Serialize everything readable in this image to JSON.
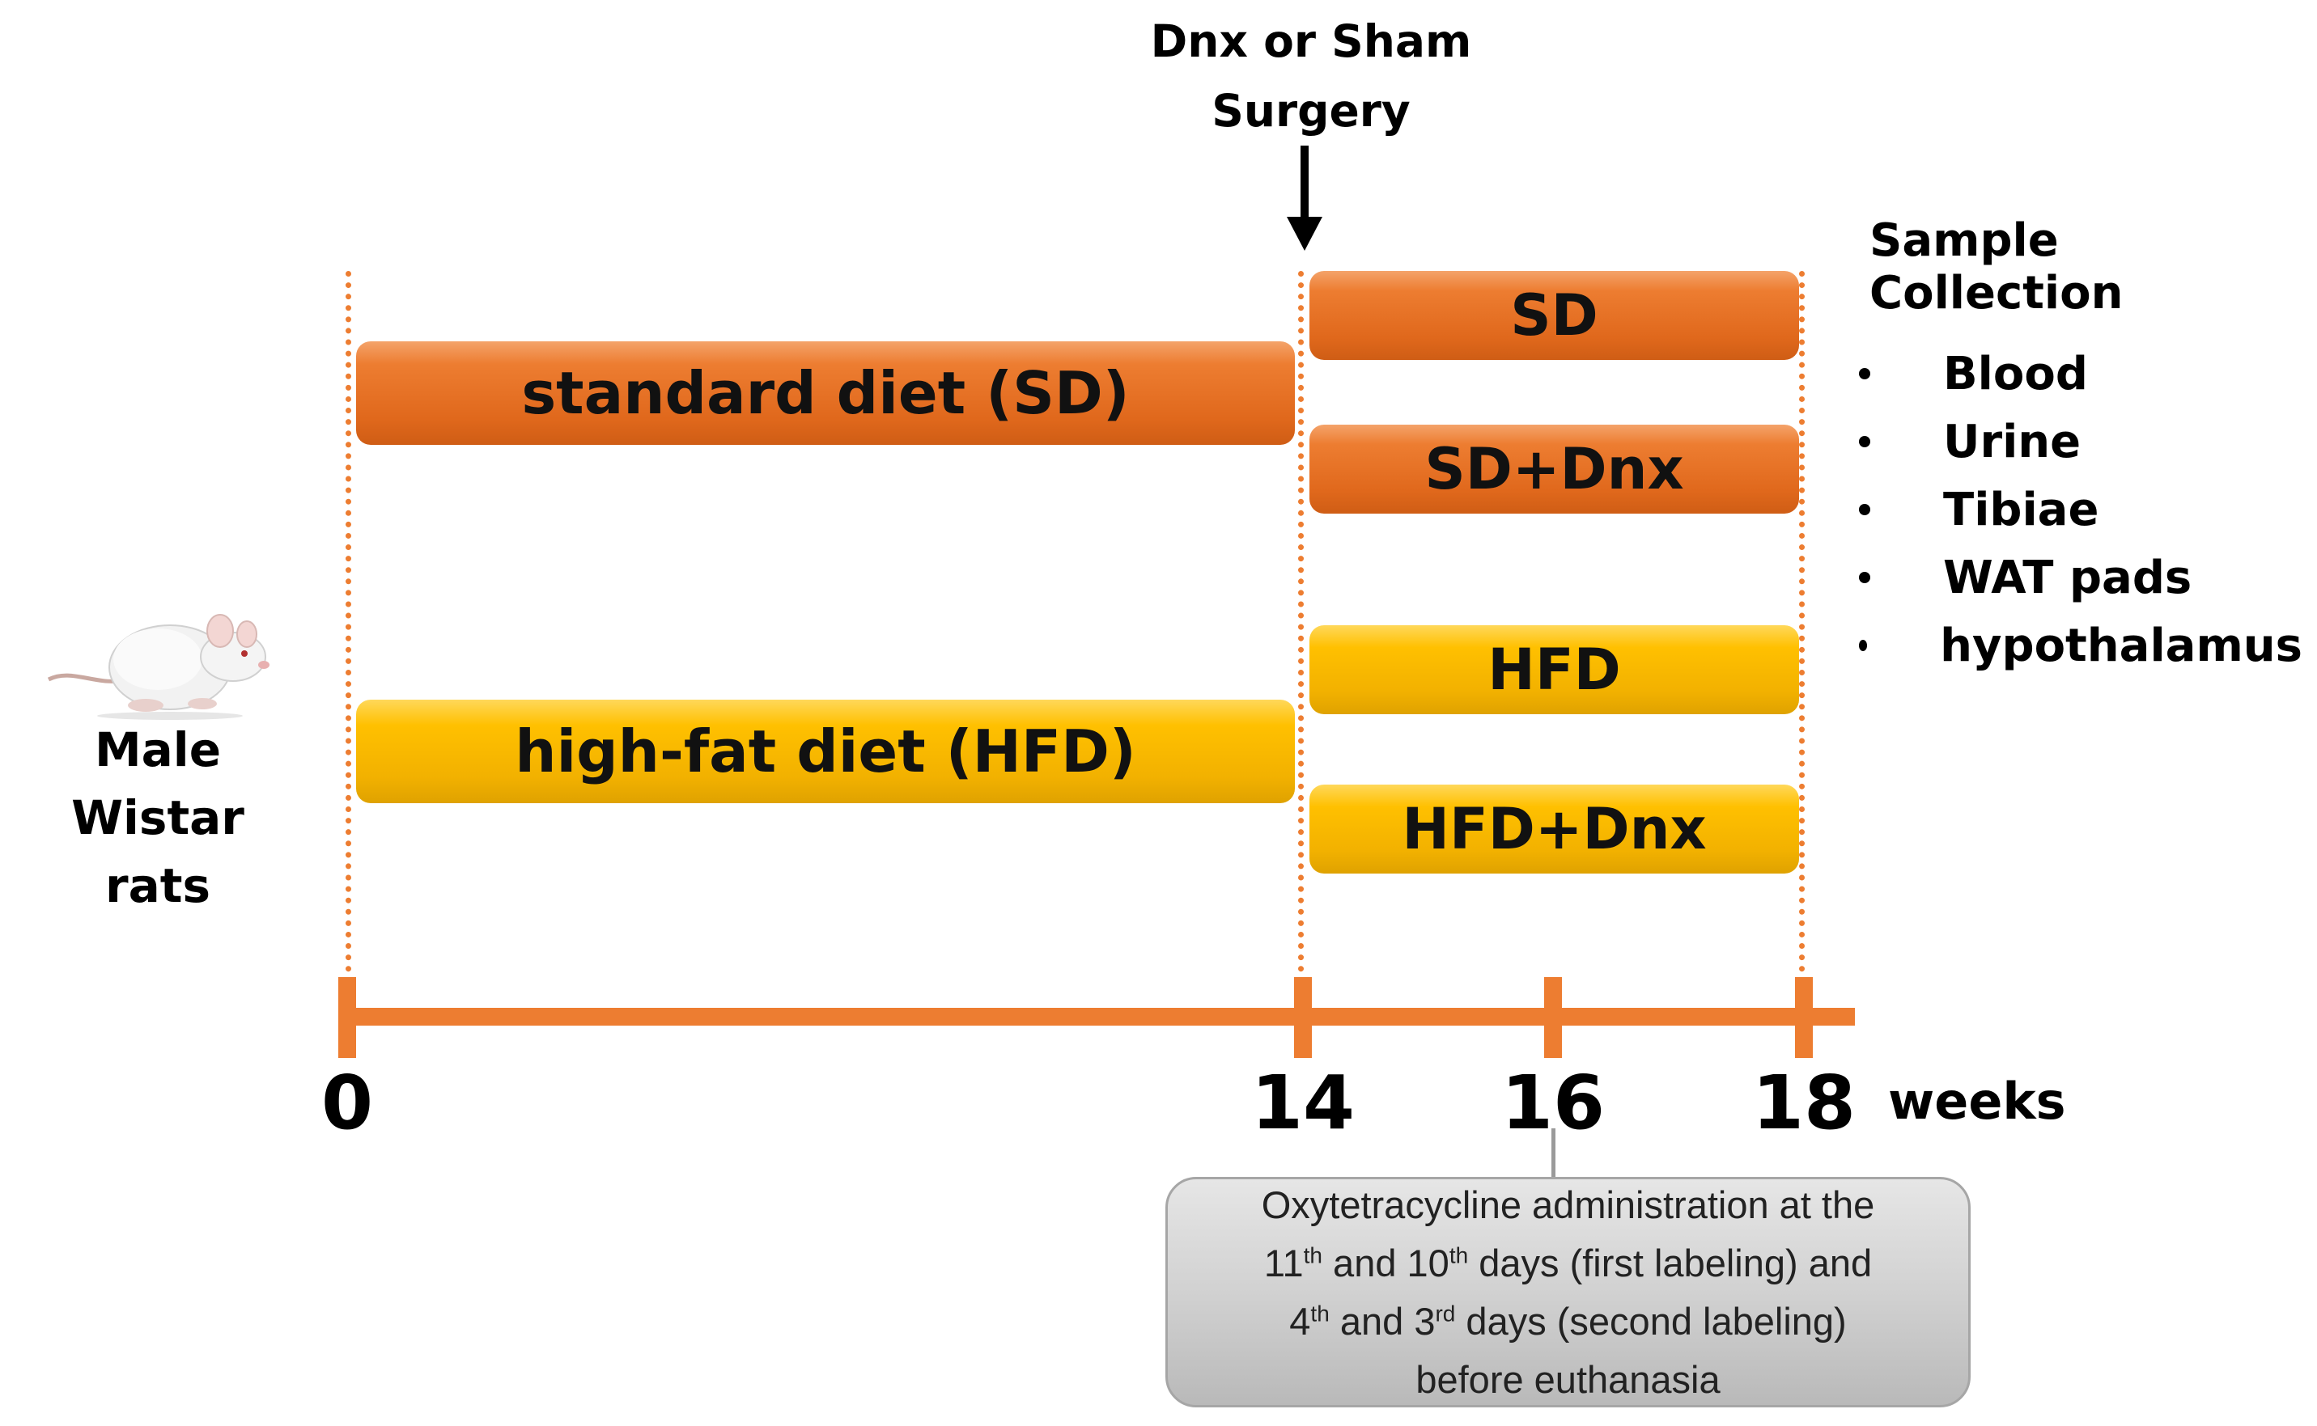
{
  "surgery": {
    "line1": "Dnx or Sham",
    "line2": "Surgery"
  },
  "phase1": {
    "sd_label": "standard diet (SD)",
    "hfd_label": "high-fat diet (HFD)"
  },
  "phase2": {
    "sd": "SD",
    "sd_dnx": "SD+Dnx",
    "hfd": "HFD",
    "hfd_dnx": "HFD+Dnx"
  },
  "subject": {
    "line1": "Male",
    "line2": "Wistar rats"
  },
  "sample_collection": {
    "title": "Sample Collection",
    "items": [
      "Blood",
      "Urine",
      "Tibiae",
      "WAT pads",
      "hypothalamus"
    ]
  },
  "timeline": {
    "ticks": [
      "0",
      "14",
      "16",
      "18"
    ],
    "unit": "weeks"
  },
  "note": {
    "l1": "Oxytetracycline administration at the",
    "l2_n1": "11",
    "l2_s1": "th",
    "l2_a": " and 10",
    "l2_s2": "th",
    "l2_b": " days (first labeling) and",
    "l3_n1": "4",
    "l3_s1": "th",
    "l3_a": " and 3",
    "l3_s2": "rd",
    "l3_b": " days (second labeling)",
    "l4": "before euthanasia"
  },
  "colors": {
    "sd": "#ed7d31",
    "hfd": "#ffc000",
    "axis": "#ed7d31",
    "note_bg": "#d0d0d0"
  }
}
